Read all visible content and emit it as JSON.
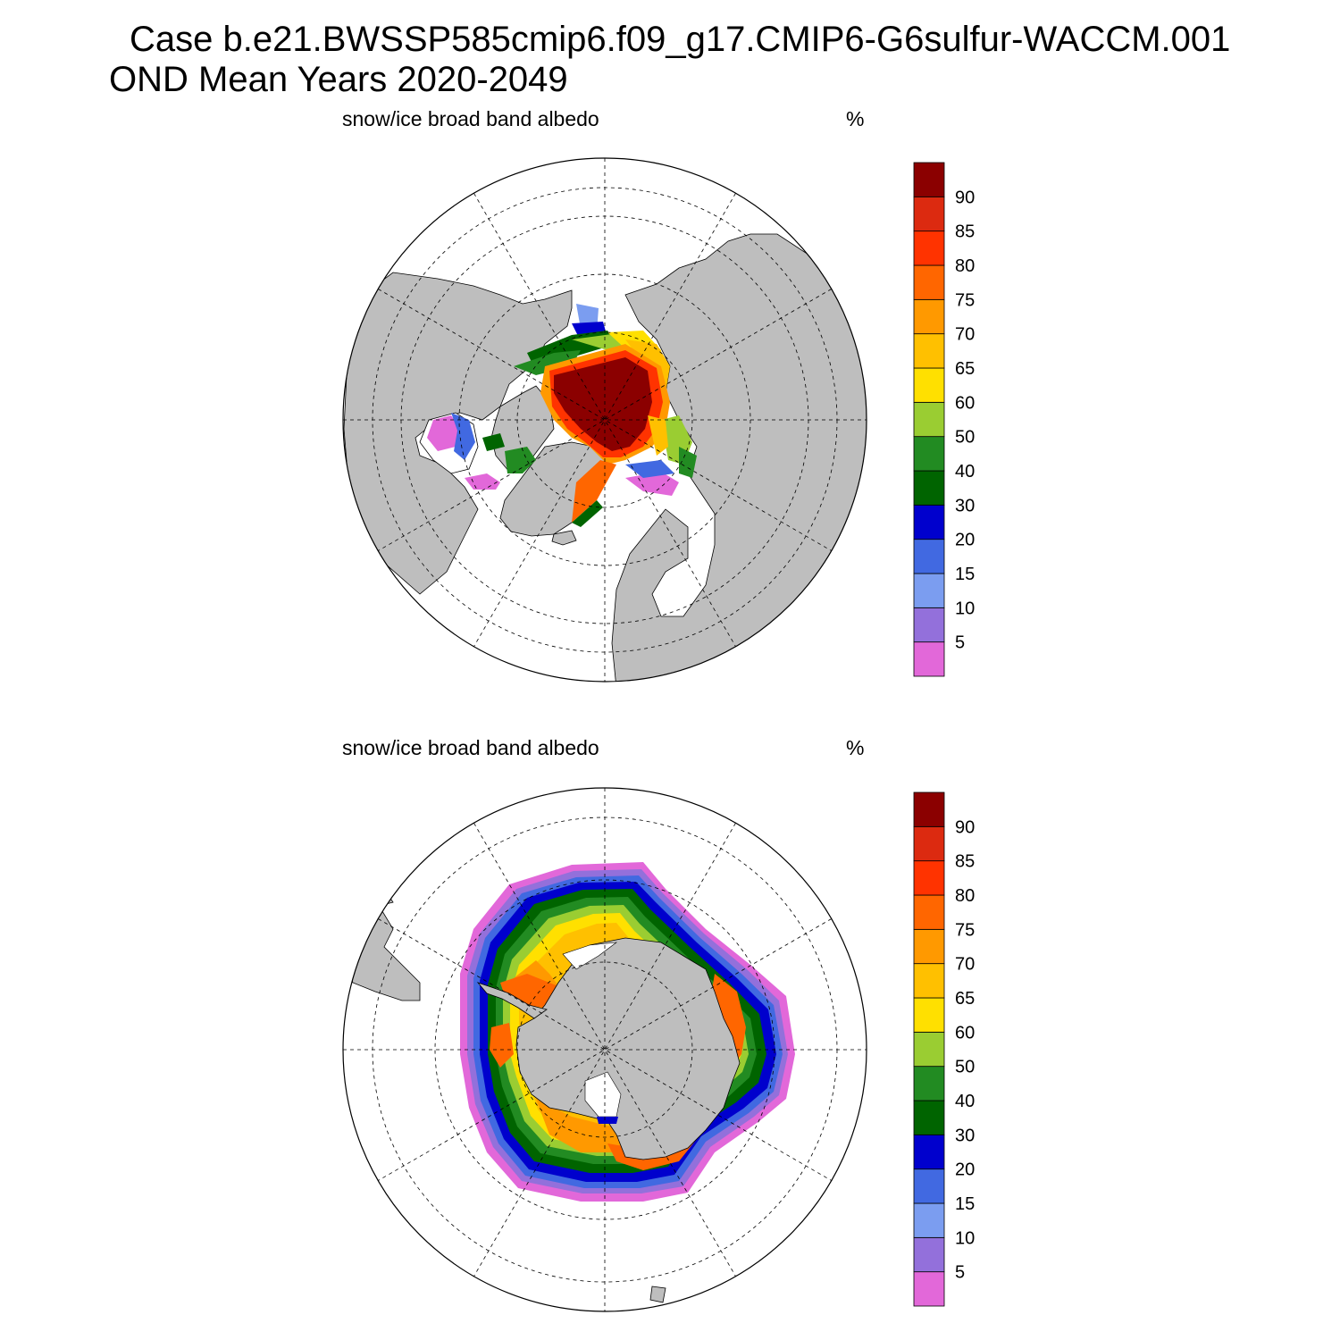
{
  "header": {
    "title_line_1": "Case b.e21.BWSSP585cmip6.f09_g17.CMIP6-G6sulfur-WACCM.001",
    "title_line_2": "OND Mean   Years 2020-2049"
  },
  "panels": [
    {
      "id": "north",
      "variable": "snow/ice broad band albedo",
      "units": "%"
    },
    {
      "id": "south",
      "variable": "snow/ice broad band albedo",
      "units": "%"
    }
  ],
  "colorbar": {
    "tick_labels": [
      "5",
      "10",
      "15",
      "20",
      "30",
      "40",
      "50",
      "60",
      "65",
      "70",
      "75",
      "80",
      "85",
      "90"
    ],
    "colors": [
      "#e268d9",
      "#9370db",
      "#7b9df0",
      "#4169e1",
      "#0000cd",
      "#006400",
      "#228b22",
      "#9acd32",
      "#ffe000",
      "#ffc000",
      "#ff9900",
      "#ff6600",
      "#ff3300",
      "#dc2a10",
      "#8b0000"
    ]
  },
  "map_colors": {
    "land": "#bebebe",
    "ocean": "#ffffff"
  }
}
